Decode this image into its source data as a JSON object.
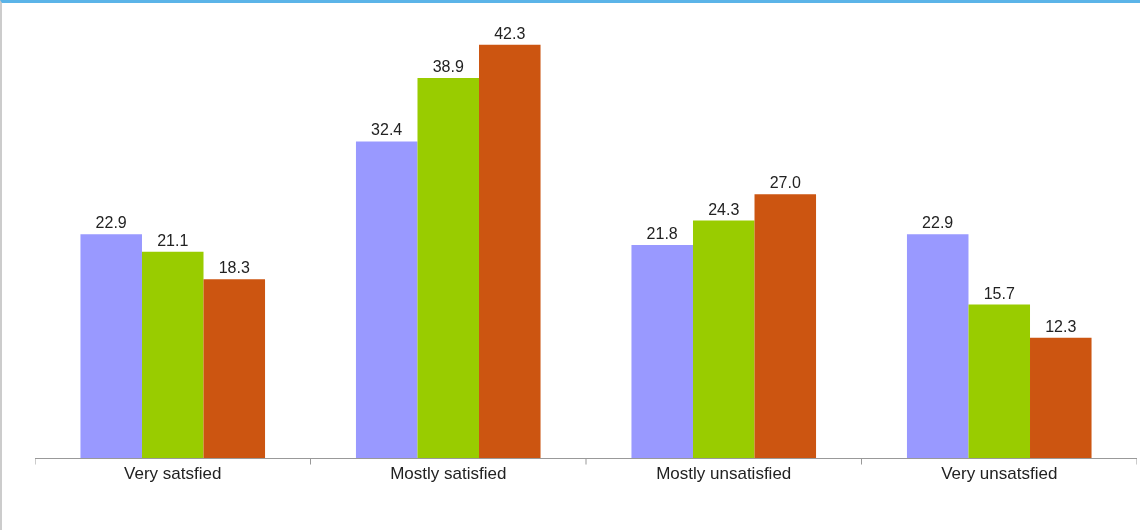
{
  "chart_data": {
    "type": "bar",
    "categories": [
      "Very satsfied",
      "Mostly satisfied",
      "Mostly unsatisfied",
      "Very unsatsfied"
    ],
    "series": [
      {
        "color": "#9999ff",
        "values": [
          22.9,
          32.4,
          21.8,
          22.9
        ],
        "value_labels": [
          "22.9",
          "32.4",
          "21.8",
          "22.9"
        ]
      },
      {
        "color": "#99cc00",
        "values": [
          21.1,
          38.9,
          24.3,
          15.7
        ],
        "value_labels": [
          "21.1",
          "38.9",
          "24.3",
          "15.7"
        ]
      },
      {
        "color": "#cc5511",
        "values": [
          18.3,
          42.3,
          27.0,
          12.3
        ],
        "value_labels": [
          "18.3",
          "42.3",
          "27.0",
          "12.3"
        ]
      }
    ],
    "grid": false
  }
}
